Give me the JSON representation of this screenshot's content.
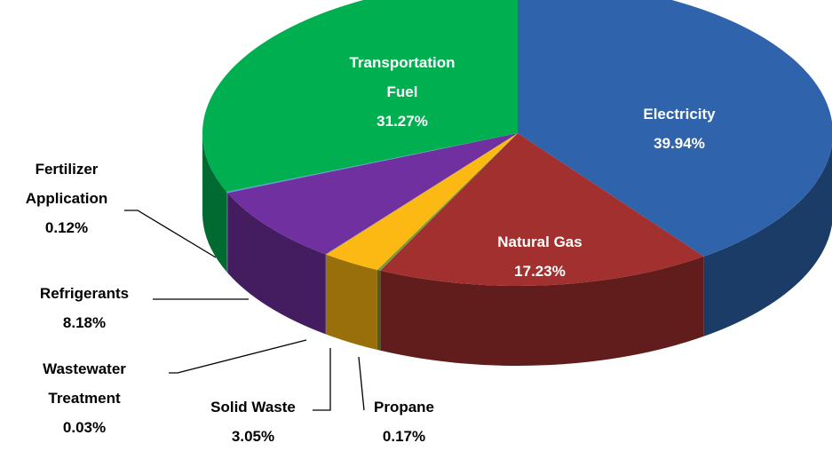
{
  "chart_data": {
    "type": "pie",
    "categories": [
      "Electricity",
      "Natural Gas",
      "Propane",
      "Solid Waste",
      "Wastewater Treatment",
      "Refrigerants",
      "Fertilizer Application",
      "Transportation Fuel"
    ],
    "values": [
      39.94,
      17.23,
      0.17,
      3.05,
      0.03,
      8.18,
      0.12,
      31.27
    ],
    "value_labels": [
      "39.94%",
      "17.23%",
      "0.17%",
      "3.05%",
      "0.03%",
      "8.18%",
      "0.12%",
      "31.27%"
    ],
    "colors": [
      "#2f64ad",
      "#a2302e",
      "#7a9b3c",
      "#fdb913",
      "#4a7bc0",
      "#7030a0",
      "#5b9bd5",
      "#00b050"
    ]
  }
}
